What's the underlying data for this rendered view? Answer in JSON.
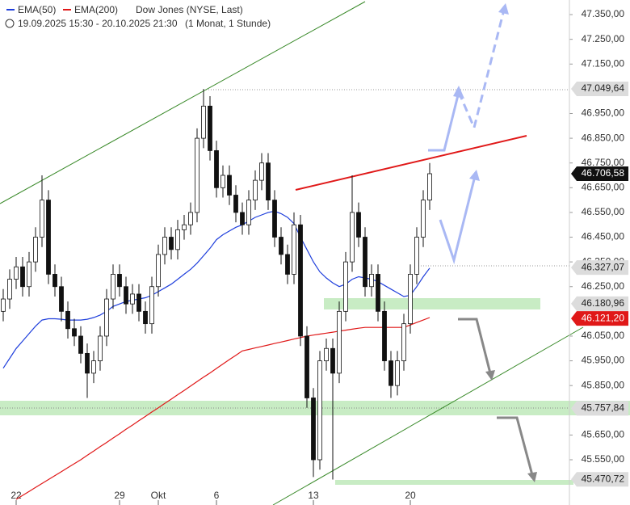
{
  "chart_data": {
    "type": "candlestick",
    "title": "Dow Jones (NYSE, Last)",
    "subtitle": "19.09.2025 15:30 - 20.10.2025 21:30",
    "period": "(1 Monat, 1 Stunde)",
    "categories": [
      null,
      null,
      "22",
      null,
      null,
      null,
      null,
      null,
      null,
      null,
      null,
      null,
      null,
      null,
      null,
      null,
      null,
      null,
      "29",
      null,
      null,
      null,
      null,
      null,
      "Okt",
      null,
      null,
      null,
      null,
      null,
      null,
      null,
      null,
      "6",
      null,
      null,
      null,
      null,
      null,
      null,
      null,
      null,
      null,
      null,
      null,
      null,
      null,
      null,
      "13",
      null,
      null,
      null,
      null,
      null,
      null,
      null,
      null,
      null,
      null,
      null,
      null,
      null,
      null,
      "20",
      null,
      null,
      null
    ],
    "open": [
      46150,
      46200,
      46280,
      46330,
      46250,
      46350,
      46450,
      46600,
      46300,
      46250,
      46150,
      46080,
      46050,
      45980,
      45900,
      45950,
      46050,
      46200,
      46300,
      46250,
      46180,
      46220,
      46150,
      46100,
      46250,
      46380,
      46450,
      46400,
      46480,
      46500,
      46550,
      46850,
      46980,
      46800,
      46650,
      46700,
      46620,
      46550,
      46500,
      46600,
      46680,
      46750,
      46600,
      46450,
      46380,
      46300,
      46500,
      46050,
      45800,
      45550,
      45950,
      46000,
      45900,
      46150,
      46350,
      46550,
      46450,
      46250,
      46300,
      46150,
      45950,
      45850,
      45950,
      46100,
      46300,
      46450,
      46600
    ],
    "high": [
      46240,
      46320,
      46370,
      46370,
      46390,
      46490,
      46700,
      46640,
      46340,
      46290,
      46190,
      46120,
      46090,
      46020,
      45990,
      46090,
      46240,
      46340,
      46340,
      46290,
      46260,
      46260,
      46190,
      46290,
      46420,
      46490,
      46490,
      46520,
      46540,
      46590,
      46890,
      47049,
      47020,
      46840,
      46740,
      46740,
      46660,
      46590,
      46640,
      46720,
      46790,
      46790,
      46640,
      46490,
      46420,
      46550,
      46540,
      46090,
      45840,
      45990,
      46040,
      46040,
      46190,
      46390,
      46700,
      46590,
      46490,
      46340,
      46340,
      46190,
      45990,
      45990,
      46140,
      46340,
      46490,
      46640,
      46750
    ],
    "low": [
      46110,
      46160,
      46240,
      46210,
      46210,
      46310,
      46410,
      46260,
      46210,
      46110,
      46040,
      46010,
      45940,
      45800,
      45860,
      45910,
      46010,
      46160,
      46210,
      46140,
      46140,
      46110,
      46060,
      46060,
      46210,
      46340,
      46360,
      46360,
      46440,
      46460,
      46510,
      46810,
      46760,
      46610,
      46610,
      46580,
      46510,
      46460,
      46460,
      46560,
      46640,
      46560,
      46410,
      46340,
      46260,
      46260,
      46010,
      45760,
      45480,
      45510,
      45910,
      45470,
      45860,
      46110,
      46310,
      46410,
      46210,
      46210,
      46110,
      45910,
      45800,
      45810,
      45910,
      46060,
      46260,
      46410,
      46560
    ],
    "close": [
      46200,
      46280,
      46330,
      46250,
      46350,
      46450,
      46600,
      46300,
      46250,
      46150,
      46080,
      46050,
      45980,
      45900,
      45950,
      46050,
      46200,
      46300,
      46250,
      46180,
      46220,
      46150,
      46100,
      46250,
      46380,
      46450,
      46400,
      46480,
      46500,
      46550,
      46850,
      46980,
      46800,
      46650,
      46700,
      46620,
      46550,
      46500,
      46600,
      46680,
      46750,
      46600,
      46450,
      46380,
      46300,
      46500,
      46050,
      45800,
      45550,
      45950,
      46000,
      45900,
      46150,
      46350,
      46550,
      46450,
      46250,
      46300,
      46150,
      45950,
      45850,
      45950,
      46100,
      46300,
      46450,
      46600,
      46706.58
    ],
    "series": [
      {
        "name": "EMA(50)",
        "color": "#1f3fdc",
        "values": [
          45920,
          45960,
          46000,
          46030,
          46060,
          46090,
          46115,
          46120,
          46120,
          46118,
          46115,
          46115,
          46115,
          46118,
          46125,
          46135,
          46150,
          46170,
          46180,
          46190,
          46195,
          46200,
          46205,
          46215,
          46230,
          46245,
          46260,
          46280,
          46300,
          46320,
          46345,
          46375,
          46405,
          46440,
          46460,
          46475,
          46490,
          46500,
          46515,
          46530,
          46540,
          46550,
          46555,
          46545,
          46530,
          46505,
          46450,
          46400,
          46350,
          46310,
          46285,
          46265,
          46250,
          46260,
          46280,
          46290,
          46285,
          46280,
          46270,
          46255,
          46240,
          46225,
          46210,
          46215,
          46250,
          46290,
          46325
        ]
      },
      {
        "name": "EMA(200)",
        "color": "#e01818",
        "values": [
          null,
          null,
          45390,
          45406,
          45422,
          45438,
          45454,
          45470,
          45486,
          45502,
          45518,
          45534,
          45550,
          45568,
          45585,
          45603,
          45620,
          45638,
          45655,
          45673,
          45690,
          45708,
          45725,
          45743,
          45760,
          45778,
          45795,
          45813,
          45830,
          45848,
          45866,
          45884,
          45901,
          45919,
          45937,
          45955,
          45972,
          45990,
          45996,
          46002,
          46008,
          46014,
          46020,
          46026,
          46032,
          46038,
          46044,
          46050,
          46054,
          46058,
          46062,
          46066,
          46070,
          46074,
          46078,
          46082,
          46085,
          46085,
          46085,
          46085,
          46085,
          46085,
          46085,
          46095,
          46105,
          46115,
          46125
        ]
      }
    ],
    "ylim": [
      45367,
      47409
    ],
    "yticks": [
      {
        "value": 47350,
        "label": "47.350,00"
      },
      {
        "value": 47250,
        "label": "47.250,00"
      },
      {
        "value": 47150,
        "label": "47.150,00"
      },
      {
        "value": 46950,
        "label": "46.950,00"
      },
      {
        "value": 46850,
        "label": "46.850,00"
      },
      {
        "value": 46750,
        "label": "46.750,00"
      },
      {
        "value": 46650,
        "label": "46.650,00"
      },
      {
        "value": 46550,
        "label": "46.550,00"
      },
      {
        "value": 46450,
        "label": "46.450,00"
      },
      {
        "value": 46350,
        "label": "46.350,00"
      },
      {
        "value": 46250,
        "label": "46.250,00"
      },
      {
        "value": 46050,
        "label": "46.050,00"
      },
      {
        "value": 45950,
        "label": "45.950,00"
      },
      {
        "value": 45850,
        "label": "45.850,00"
      },
      {
        "value": 45650,
        "label": "45.650,00"
      },
      {
        "value": 45550,
        "label": "45.550,00"
      }
    ],
    "price_labels": [
      {
        "value": 47049.64,
        "label": "47.049,64",
        "color": "#dcdcdc"
      },
      {
        "value": 46706.58,
        "label": "46.706,58",
        "color": "#111111"
      },
      {
        "value": 46327.07,
        "label": "46.327,07",
        "color": "#dcdcdc"
      },
      {
        "value": 46180.96,
        "label": "46.180,96",
        "color": "#dcdcdc"
      },
      {
        "value": 46121.2,
        "label": "46.121,20",
        "color": "#e01818"
      },
      {
        "value": 45757.84,
        "label": "45.757,84",
        "color": "#dcdcdc"
      },
      {
        "value": 45470.72,
        "label": "45.470,72",
        "color": "#dcdcdc"
      }
    ]
  }
}
